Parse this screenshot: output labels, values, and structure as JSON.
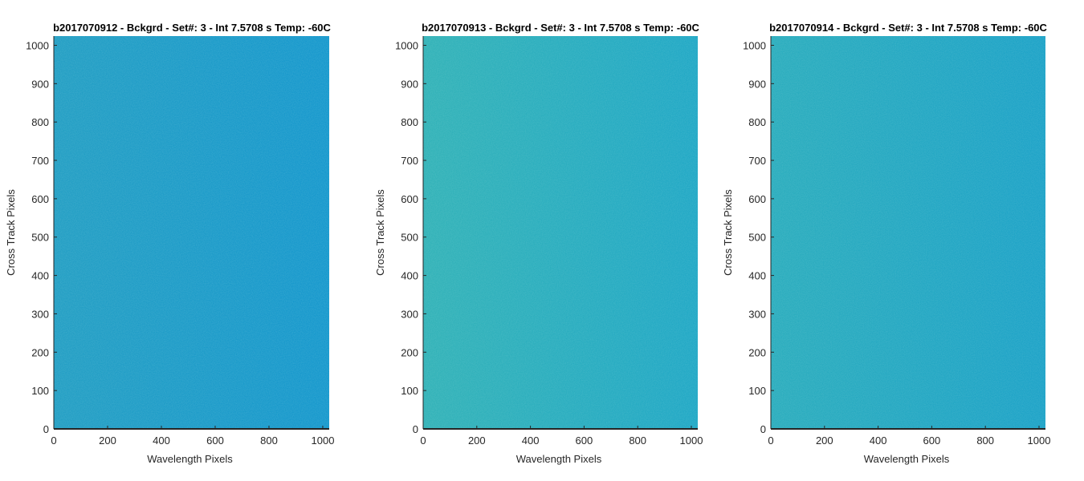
{
  "figure": {
    "background": "#ffffff"
  },
  "chart_data": [
    {
      "type": "heatmap",
      "title": "b2017070912 - Bckgrd - Set#: 3 - Int 7.5708 s Temp: -60C",
      "xlabel": "Wavelength Pixels",
      "ylabel": "Cross Track Pixels",
      "xlim": [
        0,
        1024
      ],
      "ylim": [
        0,
        1024
      ],
      "xticks": [
        0,
        200,
        400,
        600,
        800,
        1000
      ],
      "yticks": [
        0,
        100,
        200,
        300,
        400,
        500,
        600,
        700,
        800,
        900,
        1000
      ],
      "colors": {
        "dominant": "#0c93cc",
        "secondary": "#1a9ac2"
      },
      "grid": false
    },
    {
      "type": "heatmap",
      "title": "b2017070913 - Bckgrd - Set#: 3 - Int 7.5708 s Temp: -60C",
      "xlabel": "Wavelength Pixels",
      "ylabel": "Cross Track Pixels",
      "xlim": [
        0,
        1024
      ],
      "ylim": [
        0,
        1024
      ],
      "xticks": [
        0,
        200,
        400,
        600,
        800,
        1000
      ],
      "yticks": [
        0,
        100,
        200,
        300,
        400,
        500,
        600,
        700,
        800,
        900,
        1000
      ],
      "colors": {
        "dominant": "#17a4c4",
        "secondary": "#2aafb5"
      },
      "grid": false
    },
    {
      "type": "heatmap",
      "title": "b2017070914 - Bckgrd - Set#: 3 - Int 7.5708 s Temp: -60C",
      "xlabel": "Wavelength Pixels",
      "ylabel": "Cross Track Pixels",
      "xlim": [
        0,
        1024
      ],
      "ylim": [
        0,
        1024
      ],
      "xticks": [
        0,
        200,
        400,
        600,
        800,
        1000
      ],
      "yticks": [
        0,
        100,
        200,
        300,
        400,
        500,
        600,
        700,
        800,
        900,
        1000
      ],
      "colors": {
        "dominant": "#139ec6",
        "secondary": "#22a9bb"
      },
      "grid": false
    }
  ]
}
